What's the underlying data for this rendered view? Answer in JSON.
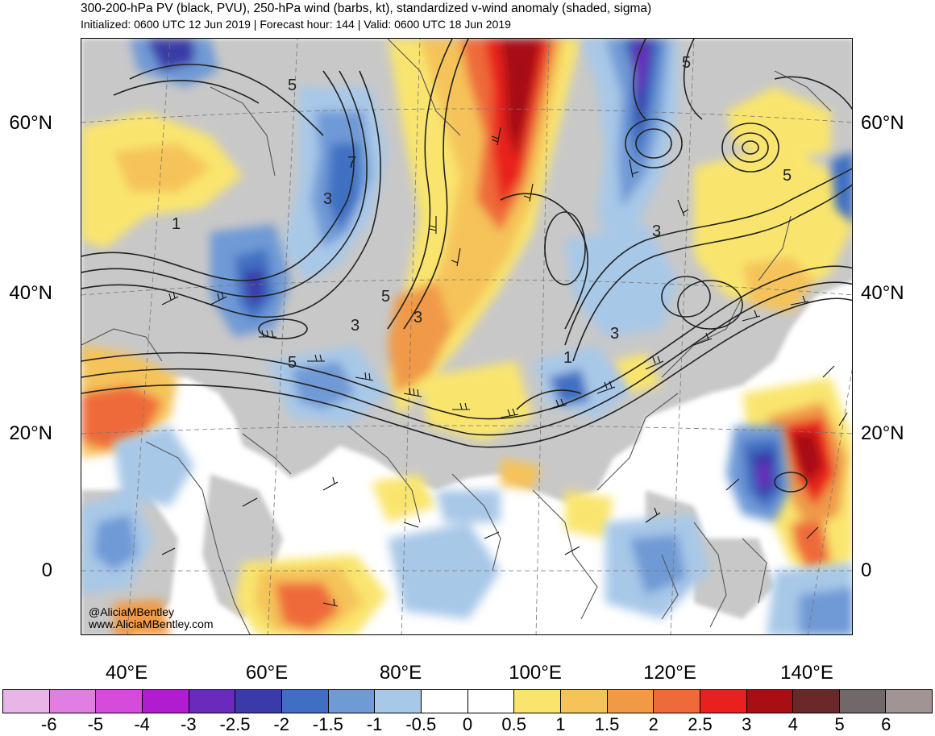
{
  "header": {
    "title": "300-200-hPa PV (black, PVU), 250-hPa wind (barbs, kt), standardized v-wind anomaly (shaded, sigma)",
    "subtitle": "Initialized: 0600 UTC 12 Jun 2019 | Forecast hour: 144 | Valid: 0600 UTC 18 Jun 2019"
  },
  "map": {
    "lat_labels": [
      "60°N",
      "40°N",
      "20°N",
      "0"
    ],
    "lon_labels": [
      "40°E",
      "60°E",
      "80°E",
      "100°E",
      "120°E",
      "140°E"
    ],
    "pv_contour_labels": [
      "5",
      "7",
      "3",
      "1",
      "5",
      "3",
      "3",
      "5",
      "3",
      "5",
      "3",
      "1",
      "5"
    ],
    "colors": {
      "land": "#c8c8c8",
      "ocean": "#ffffff",
      "contour": "#222222"
    }
  },
  "credits": {
    "handle": "@AliciaMBentley",
    "website": "www.AliciaMBentley.com"
  },
  "colorbar": {
    "labels": [
      "-6",
      "-5",
      "-4",
      "-3",
      "-2.5",
      "-2",
      "-1.5",
      "-1",
      "-0.5",
      "0",
      "0.5",
      "1",
      "1.5",
      "2",
      "2.5",
      "3",
      "4",
      "5",
      "6"
    ],
    "colors": [
      "#e8b6e6",
      "#e17ee3",
      "#d44cd9",
      "#b01ccf",
      "#6a2bbd",
      "#3a3aa8",
      "#3f6fc2",
      "#6f9ad6",
      "#a8c8e8",
      "#ffffff",
      "#ffffff",
      "#f9e56e",
      "#f5c35a",
      "#f09a48",
      "#ef6a3a",
      "#e8201e",
      "#a70f12",
      "#6a2828",
      "#716969",
      "#a09494"
    ]
  }
}
